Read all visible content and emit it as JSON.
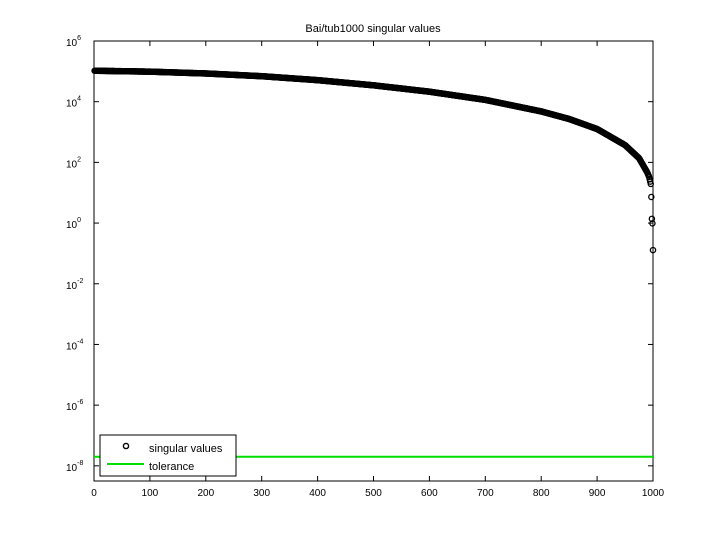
{
  "chart_data": {
    "type": "scatter",
    "title": "Bai/tub1000 singular values",
    "xlabel": "",
    "ylabel": "",
    "xlim": [
      0,
      1000
    ],
    "ylim_log10": [
      -8.5,
      6
    ],
    "y_scale": "log",
    "grid": false,
    "legend_position": "bottom-left",
    "x_ticks": [
      "0",
      "100",
      "200",
      "300",
      "400",
      "500",
      "600",
      "700",
      "800",
      "900",
      "1000"
    ],
    "y_ticks": [
      {
        "base": "10",
        "exp": "6"
      },
      {
        "base": "10",
        "exp": "4"
      },
      {
        "base": "10",
        "exp": "2"
      },
      {
        "base": "10",
        "exp": "0"
      },
      {
        "base": "10",
        "exp": "-2"
      },
      {
        "base": "10",
        "exp": "-4"
      },
      {
        "base": "10",
        "exp": "-6"
      },
      {
        "base": "10",
        "exp": "-8"
      }
    ],
    "series": [
      {
        "name": "singular values",
        "marker": "circle",
        "color": "#000000",
        "profile_log10": [
          [
            1,
            5.02
          ],
          [
            100,
            4.99
          ],
          [
            200,
            4.93
          ],
          [
            300,
            4.84
          ],
          [
            400,
            4.71
          ],
          [
            500,
            4.54
          ],
          [
            600,
            4.33
          ],
          [
            700,
            4.06
          ],
          [
            800,
            3.68
          ],
          [
            850,
            3.43
          ],
          [
            900,
            3.1
          ],
          [
            950,
            2.57
          ],
          [
            975,
            2.14
          ],
          [
            990,
            1.66
          ],
          [
            993,
            1.52
          ],
          [
            996,
            1.29
          ],
          [
            997,
            0.86
          ],
          [
            998,
            0.14
          ],
          [
            999,
            -0.01
          ],
          [
            1000,
            -0.89
          ]
        ]
      },
      {
        "name": "tolerance",
        "type": "line",
        "color": "#00dd00",
        "y_log10": -7.7
      }
    ]
  }
}
